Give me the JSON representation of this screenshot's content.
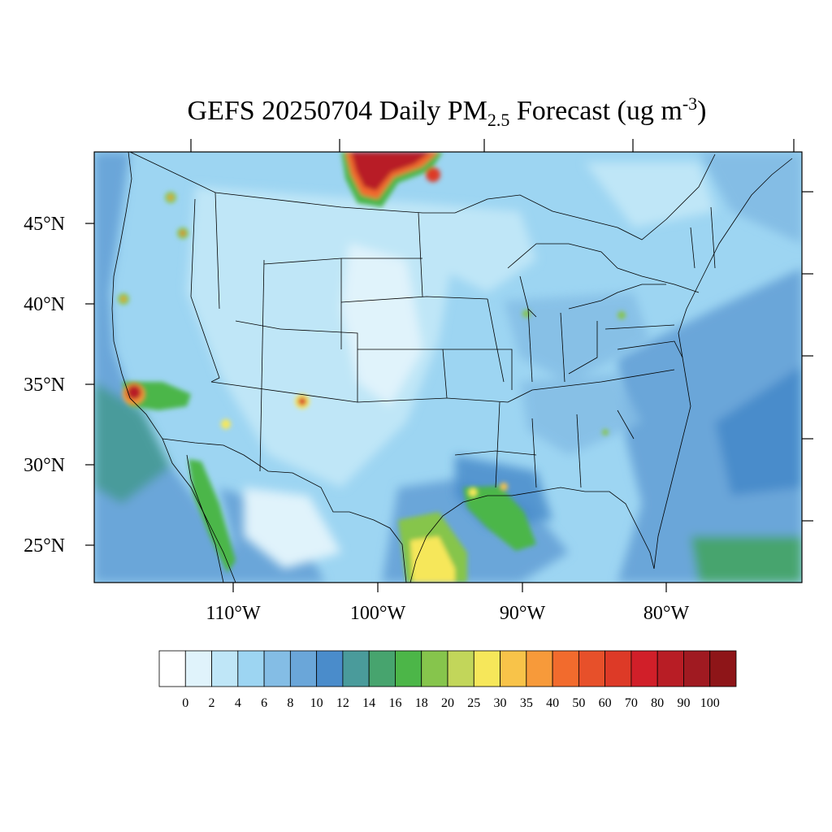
{
  "title": {
    "prefix": "GEFS 20250704 Daily PM",
    "subscript": "2.5",
    "suffix": " Forecast (ug m",
    "superscript": "-3",
    "close": ")"
  },
  "map": {
    "projection": "lambert-conformal",
    "region": "CONUS",
    "lat_labels": [
      "45°N",
      "40°N",
      "35°N",
      "30°N",
      "25°N"
    ],
    "lon_labels": [
      "110°W",
      "100°W",
      "90°W",
      "80°W"
    ]
  },
  "colorbar": {
    "labels": [
      "0",
      "2",
      "4",
      "6",
      "8",
      "10",
      "12",
      "14",
      "16",
      "18",
      "20",
      "25",
      "30",
      "35",
      "40",
      "50",
      "60",
      "70",
      "80",
      "90",
      "100"
    ],
    "colors": [
      "#ffffff",
      "#e0f3fb",
      "#bfe6f7",
      "#9dd5f2",
      "#84bde5",
      "#6aa6d9",
      "#4a8ccb",
      "#4a9b9b",
      "#47a46e",
      "#4cb648",
      "#86c54c",
      "#c2d65a",
      "#f6e75a",
      "#f8c349",
      "#f79a3a",
      "#f26b2d",
      "#e7502a",
      "#dd3a27",
      "#d11f29",
      "#b81d25",
      "#a01a21",
      "#8e1518"
    ]
  },
  "hotspots": [
    {
      "name": "Manitoba-Ontario border smoke plume",
      "value": 100
    },
    {
      "name": "Southern California",
      "value": 80
    },
    {
      "name": "South Texas",
      "value": 30
    }
  ]
}
